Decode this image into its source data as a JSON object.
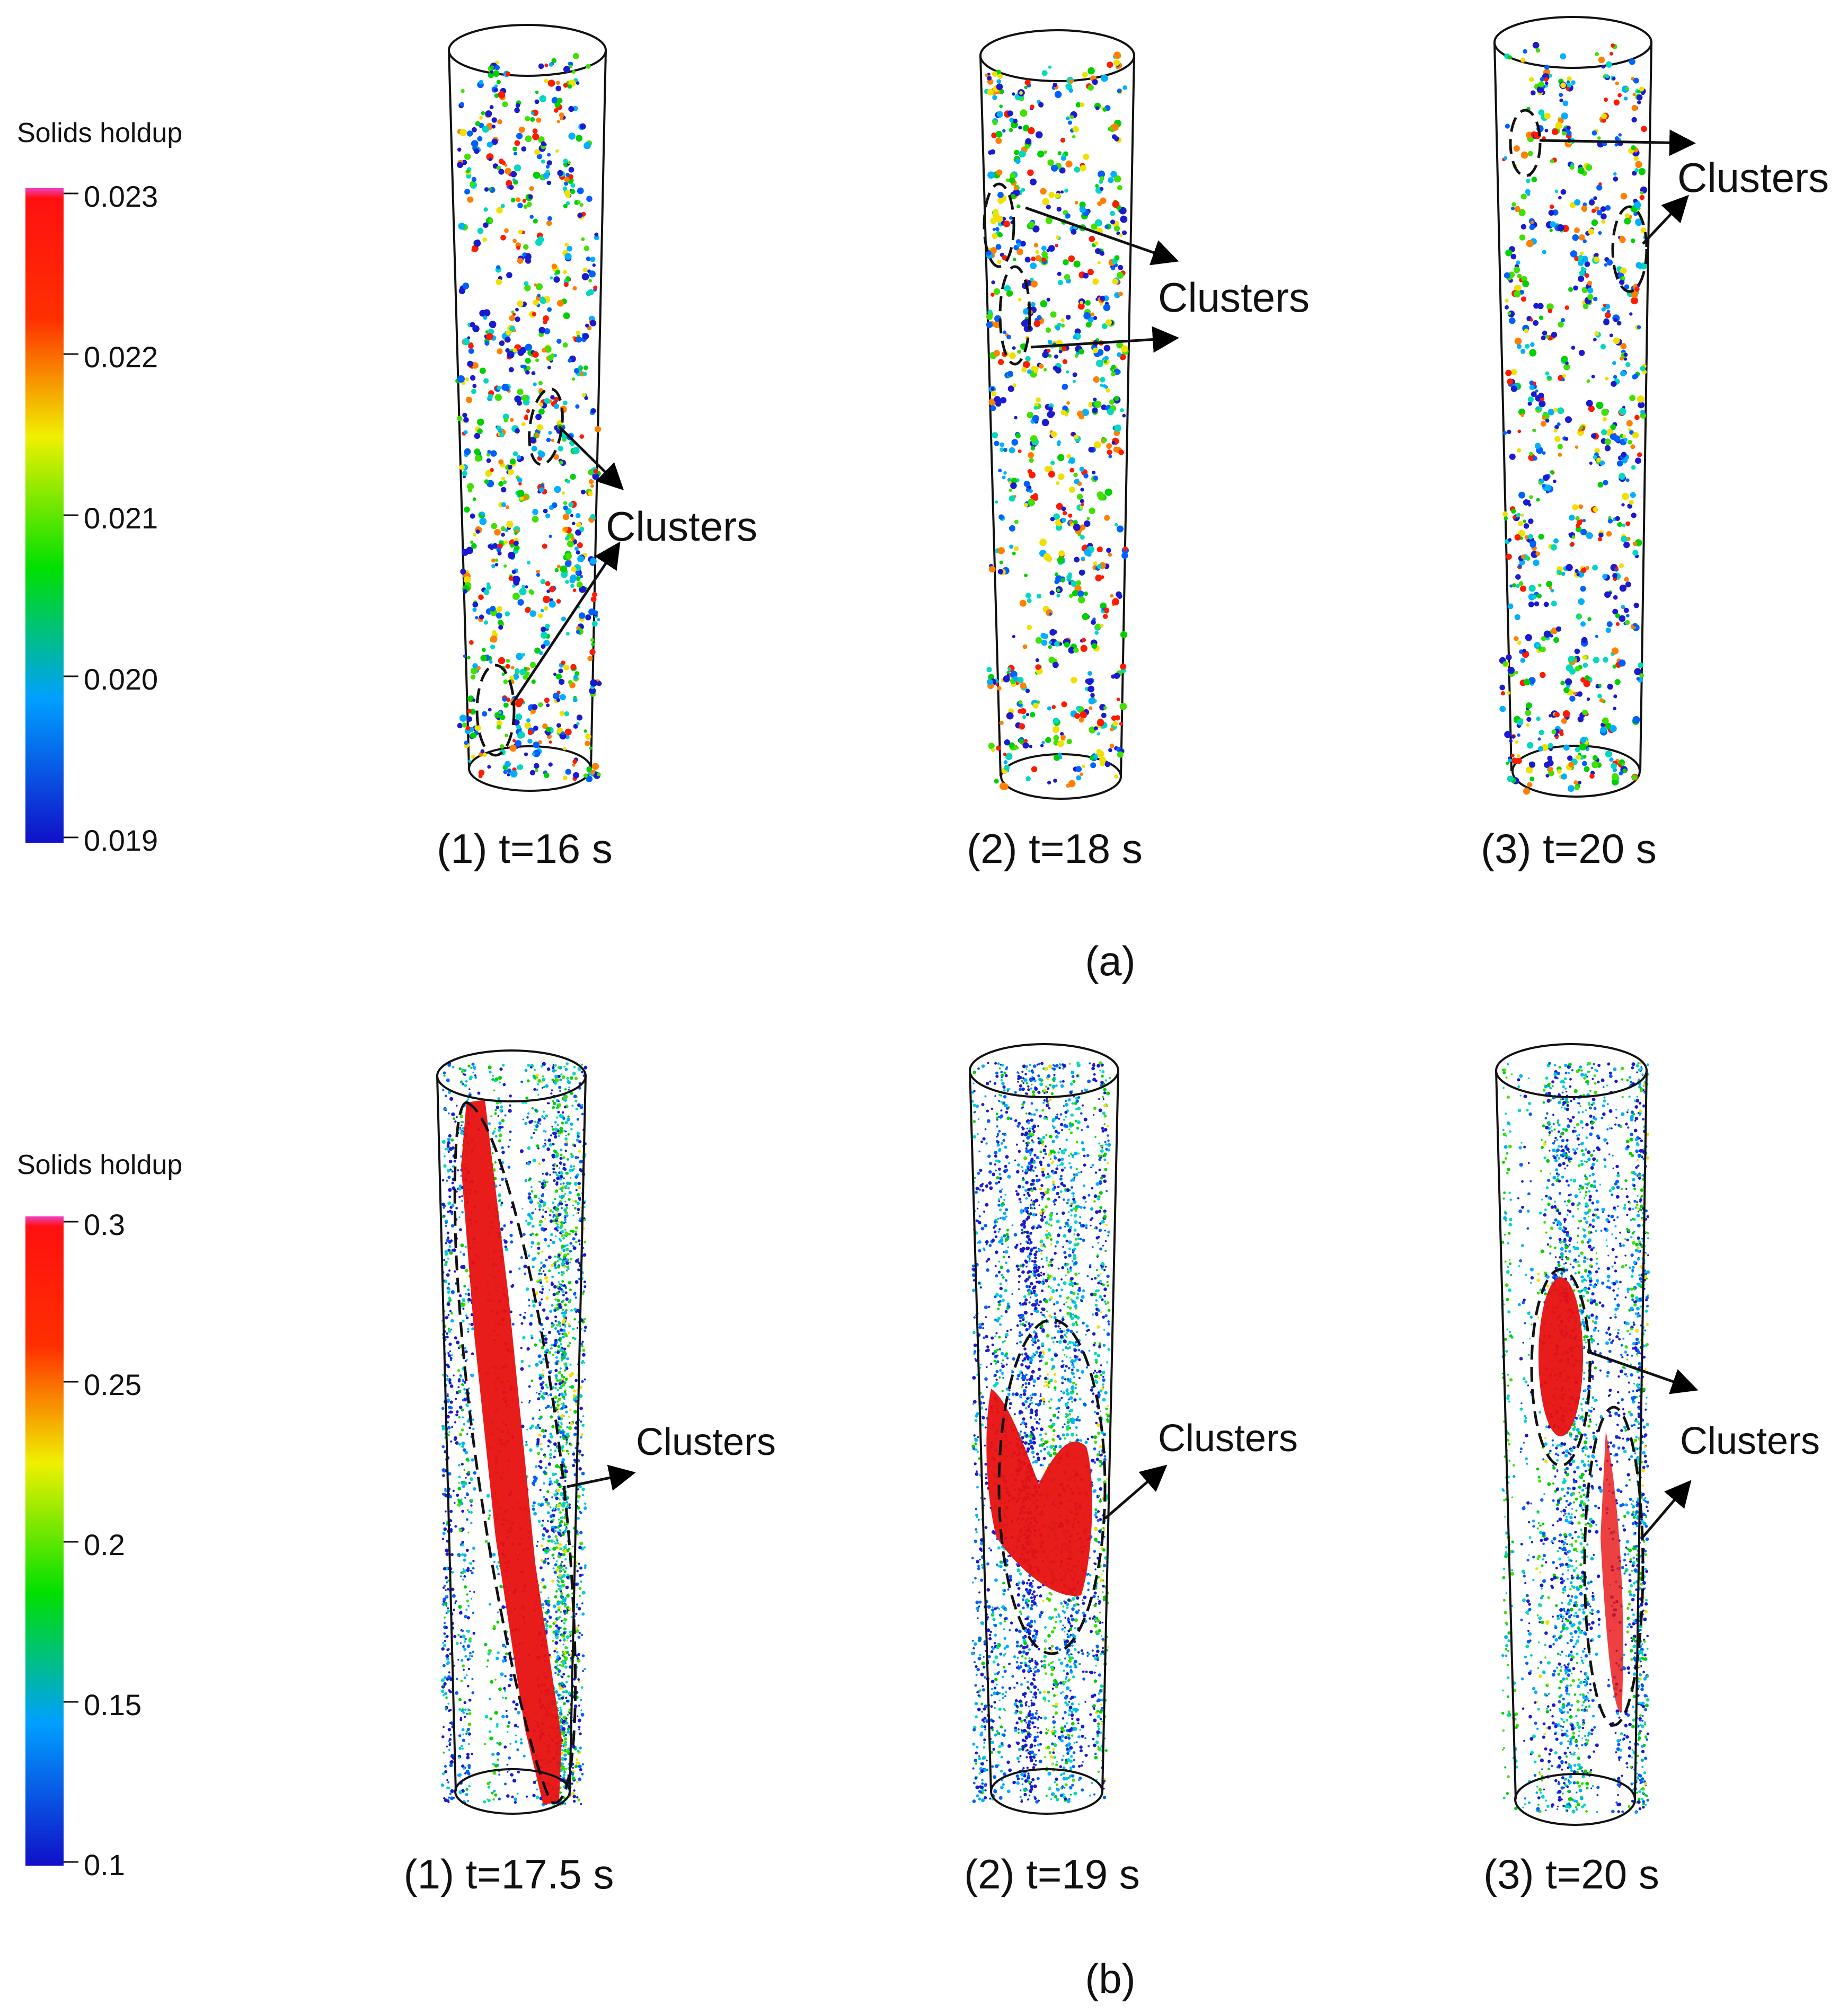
{
  "panels": [
    {
      "label": "(a)",
      "legend": {
        "title": "Solids holdup",
        "ticks": [
          "0.023",
          "0.022",
          "0.021",
          "0.020",
          "0.019"
        ],
        "colors": [
          "#1010c8",
          "#00a0ff",
          "#00e000",
          "#f0f000",
          "#ff2000",
          "#f040c0"
        ]
      },
      "columns": [
        {
          "caption": "(1) t=16 s",
          "annotation": "Clusters"
        },
        {
          "caption": "(2) t=18 s",
          "annotation": "Clusters"
        },
        {
          "caption": "(3) t=20 s",
          "annotation": "Clusters"
        }
      ]
    },
    {
      "label": "(b)",
      "legend": {
        "title": "Solids holdup",
        "ticks": [
          "0.3",
          "0.25",
          "0.2",
          "0.15",
          "0.1"
        ],
        "colors": [
          "#1010c8",
          "#00a0ff",
          "#00e000",
          "#f0f000",
          "#ff2000",
          "#f040c0"
        ]
      },
      "columns": [
        {
          "caption": "(1) t=17.5 s",
          "annotation": "Clusters"
        },
        {
          "caption": "(2) t=19 s",
          "annotation": "Clusters"
        },
        {
          "caption": "(3) t=20 s",
          "annotation": "Clusters"
        }
      ]
    }
  ]
}
